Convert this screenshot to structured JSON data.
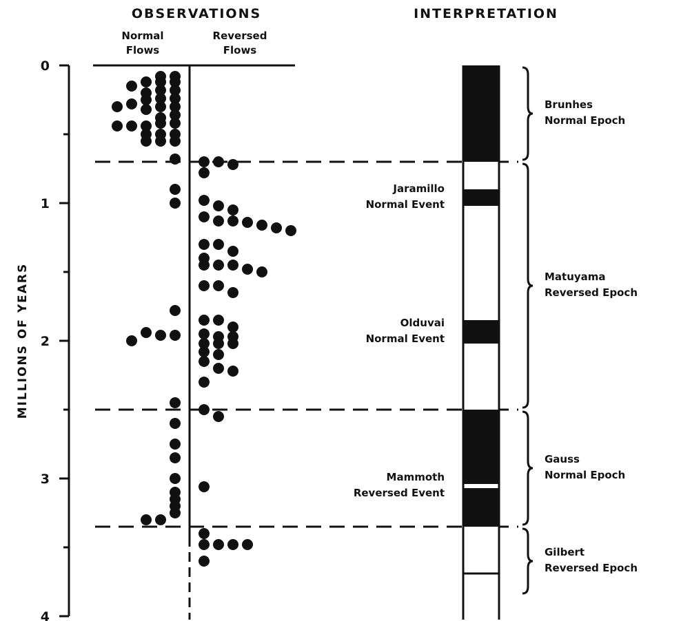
{
  "headers": {
    "observations": "OBSERVATIONS",
    "interpretation": "INTERPRETATION",
    "normal_line1": "Normal",
    "normal_line2": "Flows",
    "reversed_line1": "Reversed",
    "reversed_line2": "Flows"
  },
  "y_axis": {
    "label": "MILLIONS OF YEARS",
    "ticks": [
      "0",
      "1",
      "2",
      "3",
      "4"
    ],
    "range": [
      0,
      4
    ]
  },
  "boundaries_ma": [
    0.7,
    2.5,
    3.35
  ],
  "epochs": [
    {
      "line1": "Brunhes",
      "line2": "Normal Epoch",
      "from": 0,
      "to": 0.7
    },
    {
      "line1": "Matuyama",
      "line2": "Reversed Epoch",
      "from": 0.7,
      "to": 2.5
    },
    {
      "line1": "Gauss",
      "line2": "Normal Epoch",
      "from": 2.5,
      "to": 3.35
    },
    {
      "line1": "Gilbert",
      "line2": "Reversed Epoch",
      "from": 3.35,
      "to": 3.85
    }
  ],
  "events": [
    {
      "line1": "Jaramillo",
      "line2": "Normal Event",
      "from": 0.9,
      "to": 1.02
    },
    {
      "line1": "Olduvai",
      "line2": "Normal Event",
      "from": 1.85,
      "to": 2.02
    },
    {
      "line1": "Mammoth",
      "line2": "Reversed Event",
      "from": 3.04,
      "to": 3.07
    }
  ],
  "polarity_column": [
    {
      "from": 0,
      "to": 0.7,
      "polarity": "normal"
    },
    {
      "from": 0.7,
      "to": 0.9,
      "polarity": "reversed"
    },
    {
      "from": 0.9,
      "to": 1.02,
      "polarity": "normal"
    },
    {
      "from": 1.02,
      "to": 1.85,
      "polarity": "reversed"
    },
    {
      "from": 1.85,
      "to": 2.02,
      "polarity": "normal"
    },
    {
      "from": 2.02,
      "to": 2.5,
      "polarity": "reversed"
    },
    {
      "from": 2.5,
      "to": 3.04,
      "polarity": "normal"
    },
    {
      "from": 3.04,
      "to": 3.07,
      "polarity": "reversed"
    },
    {
      "from": 3.07,
      "to": 3.35,
      "polarity": "normal"
    },
    {
      "from": 3.35,
      "to": 4.0,
      "polarity": "reversed"
    }
  ],
  "colors": {
    "ink": "#111111",
    "paper": "#ffffff"
  },
  "chart_data": {
    "type": "scatter",
    "title": "",
    "ylabel": "MILLIONS OF YEARS",
    "ylim": [
      0,
      4
    ],
    "x_meaning": "position from flow divider (negative = normal flows, positive = reversed flows), in dot units",
    "series": [
      {
        "name": "Normal Flows",
        "points": [
          [
            -1,
            0.08
          ],
          [
            -2,
            0.08
          ],
          [
            -1,
            0.12
          ],
          [
            -2,
            0.12
          ],
          [
            -3,
            0.12
          ],
          [
            -4,
            0.15
          ],
          [
            -1,
            0.18
          ],
          [
            -2,
            0.18
          ],
          [
            -3,
            0.2
          ],
          [
            -1,
            0.24
          ],
          [
            -2,
            0.24
          ],
          [
            -3,
            0.25
          ],
          [
            -4,
            0.28
          ],
          [
            -5,
            0.3
          ],
          [
            -1,
            0.3
          ],
          [
            -2,
            0.3
          ],
          [
            -3,
            0.32
          ],
          [
            -1,
            0.36
          ],
          [
            -2,
            0.38
          ],
          [
            -1,
            0.42
          ],
          [
            -2,
            0.42
          ],
          [
            -3,
            0.44
          ],
          [
            -4,
            0.44
          ],
          [
            -5,
            0.44
          ],
          [
            -1,
            0.5
          ],
          [
            -2,
            0.5
          ],
          [
            -3,
            0.5
          ],
          [
            -1,
            0.55
          ],
          [
            -2,
            0.55
          ],
          [
            -3,
            0.55
          ],
          [
            -1,
            0.68
          ],
          [
            -1,
            0.9
          ],
          [
            -1,
            1.0
          ],
          [
            -1,
            1.78
          ],
          [
            -1,
            1.96
          ],
          [
            -2,
            1.96
          ],
          [
            -3,
            1.94
          ],
          [
            -4,
            2.0
          ],
          [
            -1,
            2.45
          ],
          [
            -1,
            2.6
          ],
          [
            -1,
            2.75
          ],
          [
            -1,
            2.85
          ],
          [
            -1,
            3.0
          ],
          [
            -1,
            3.1
          ],
          [
            -1,
            3.15
          ],
          [
            -1,
            3.2
          ],
          [
            -1,
            3.25
          ],
          [
            -2,
            3.3
          ],
          [
            -3,
            3.3
          ]
        ]
      },
      {
        "name": "Reversed Flows",
        "points": [
          [
            1,
            0.7
          ],
          [
            2,
            0.7
          ],
          [
            3,
            0.72
          ],
          [
            1,
            0.78
          ],
          [
            1,
            0.98
          ],
          [
            2,
            1.02
          ],
          [
            3,
            1.05
          ],
          [
            1,
            1.1
          ],
          [
            2,
            1.13
          ],
          [
            3,
            1.13
          ],
          [
            4,
            1.14
          ],
          [
            5,
            1.16
          ],
          [
            6,
            1.18
          ],
          [
            7,
            1.2
          ],
          [
            1,
            1.3
          ],
          [
            2,
            1.3
          ],
          [
            3,
            1.35
          ],
          [
            1,
            1.4
          ],
          [
            1,
            1.45
          ],
          [
            2,
            1.45
          ],
          [
            3,
            1.45
          ],
          [
            4,
            1.48
          ],
          [
            5,
            1.5
          ],
          [
            1,
            1.6
          ],
          [
            2,
            1.6
          ],
          [
            3,
            1.65
          ],
          [
            1,
            1.85
          ],
          [
            2,
            1.85
          ],
          [
            3,
            1.9
          ],
          [
            1,
            1.95
          ],
          [
            2,
            1.97
          ],
          [
            3,
            1.97
          ],
          [
            1,
            2.02
          ],
          [
            2,
            2.02
          ],
          [
            3,
            2.02
          ],
          [
            1,
            2.08
          ],
          [
            2,
            2.1
          ],
          [
            1,
            2.15
          ],
          [
            2,
            2.2
          ],
          [
            3,
            2.22
          ],
          [
            1,
            2.3
          ],
          [
            1,
            2.5
          ],
          [
            2,
            2.55
          ],
          [
            1,
            3.06
          ],
          [
            1,
            3.4
          ],
          [
            1,
            3.48
          ],
          [
            2,
            3.48
          ],
          [
            3,
            3.48
          ],
          [
            4,
            3.48
          ],
          [
            1,
            3.6
          ]
        ]
      }
    ]
  }
}
